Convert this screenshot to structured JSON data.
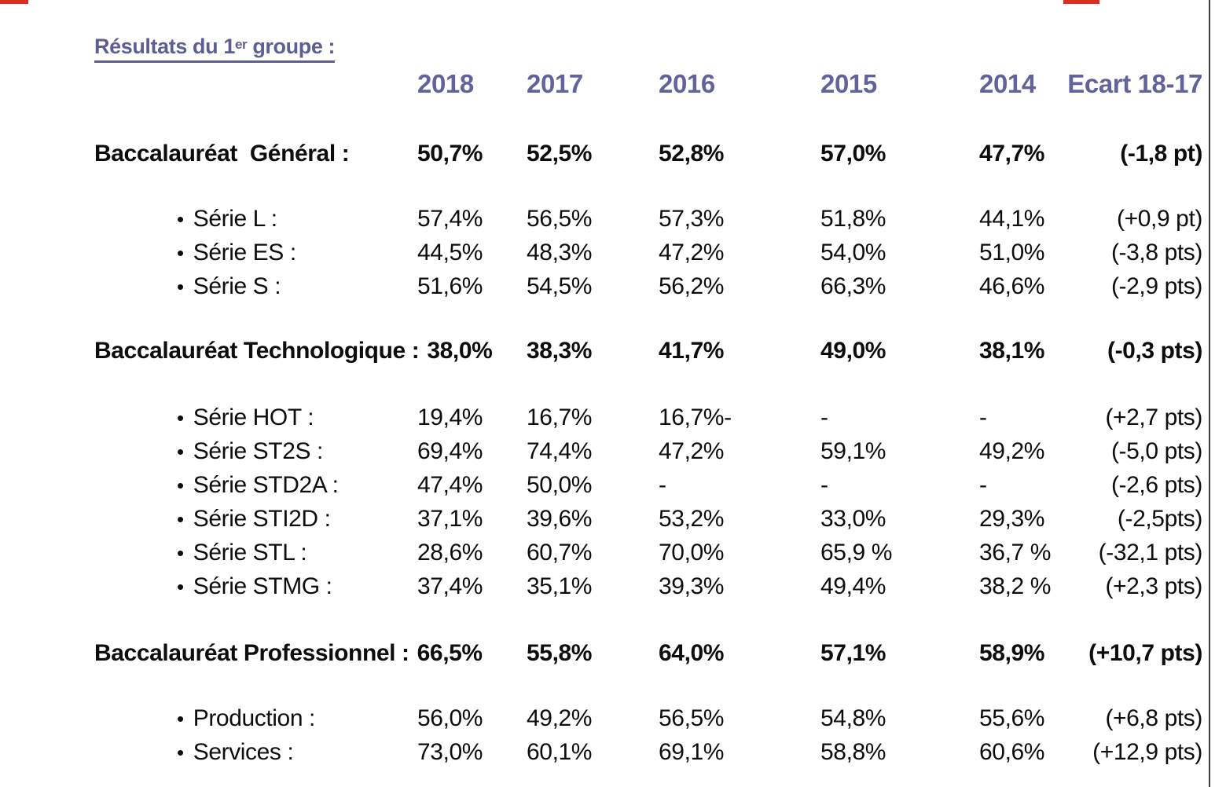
{
  "title": {
    "part1": "Résultats du 1",
    "sup": "er",
    "part2": " groupe :"
  },
  "bullet_char": "•",
  "colors": {
    "accent_title": "#5e5e96",
    "accent_header": "#63639b",
    "text": "#0d0d0d",
    "rule": "#3f3f3f",
    "red_mark": "#e02b20"
  },
  "table": {
    "columns": [
      "2018",
      "2017",
      "2016",
      "2015",
      "2014",
      "Ecart 18-17"
    ],
    "rows": [
      {
        "label": "Baccalauréat  Général :",
        "style": "group",
        "values": [
          "50,7%",
          "52,5%",
          "52,8%",
          "57,0%",
          "47,7%"
        ],
        "ecart": "(-1,8 pt)"
      },
      {
        "label": "Série L :",
        "style": "bullet",
        "values": [
          "57,4%",
          "56,5%",
          "57,3%",
          "51,8%",
          "44,1%"
        ],
        "ecart": "(+0,9 pt)"
      },
      {
        "label": "Série ES :",
        "style": "bullet",
        "values": [
          "44,5%",
          "48,3%",
          "47,2%",
          "54,0%",
          "51,0%"
        ],
        "ecart": "(-3,8 pts)"
      },
      {
        "label": "Série S :",
        "style": "bullet",
        "values": [
          "51,6%",
          "54,5%",
          "56,2%",
          "66,3%",
          "46,6%"
        ],
        "ecart": "(-2,9 pts)"
      },
      {
        "label": "Baccalauréat Technologique :",
        "style": "group-inline",
        "values": [
          "38,0%",
          "38,3%",
          "41,7%",
          "49,0%",
          "38,1%"
        ],
        "ecart": "(-0,3 pts)"
      },
      {
        "label": "Série HOT :",
        "style": "bullet",
        "values": [
          "19,4%",
          "16,7%",
          "16,7%-",
          "-",
          "-"
        ],
        "ecart": "(+2,7 pts)"
      },
      {
        "label": "Série ST2S :",
        "style": "bullet",
        "values": [
          "69,4%",
          "74,4%",
          "47,2%",
          "59,1%",
          "49,2%"
        ],
        "ecart": "(-5,0 pts)"
      },
      {
        "label": "Série STD2A :",
        "style": "bullet",
        "values": [
          "47,4%",
          "50,0%",
          "-",
          "-",
          "-"
        ],
        "ecart": "(-2,6 pts)"
      },
      {
        "label": "Série STI2D :",
        "style": "bullet",
        "values": [
          "37,1%",
          "39,6%",
          "53,2%",
          "33,0%",
          "29,3%"
        ],
        "ecart": "(-2,5pts)"
      },
      {
        "label": "Série STL :",
        "style": "bullet",
        "values": [
          "28,6%",
          "60,7%",
          "70,0%",
          "65,9 %",
          "36,7 %"
        ],
        "ecart": "(-32,1 pts)"
      },
      {
        "label": "Série STMG :",
        "style": "bullet",
        "values": [
          "37,4%",
          "35,1%",
          "39,3%",
          "49,4%",
          "38,2 %"
        ],
        "ecart": "(+2,3 pts)"
      },
      {
        "label": "Baccalauréat Professionnel :",
        "style": "group-inline",
        "values": [
          "66,5%",
          "55,8%",
          "64,0%",
          "57,1%",
          "58,9%"
        ],
        "ecart": "(+10,7 pts)"
      },
      {
        "label": "Production :",
        "style": "bullet",
        "values": [
          "56,0%",
          "49,2%",
          "56,5%",
          "54,8%",
          "55,6%"
        ],
        "ecart": "(+6,8 pts)"
      },
      {
        "label": "Services :",
        "style": "bullet",
        "values": [
          "73,0%",
          "60,1%",
          "69,1%",
          "58,8%",
          "60,6%"
        ],
        "ecart": "(+12,9 pts)"
      }
    ]
  }
}
